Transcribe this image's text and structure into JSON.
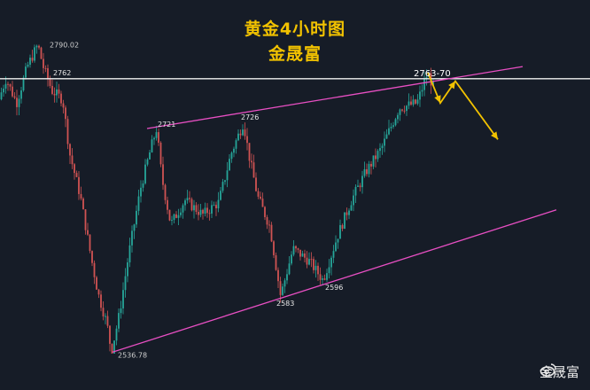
{
  "chart_data": {
    "type": "candlestick",
    "title": "黄金4小时图",
    "subtitle": "金晟富",
    "colors": {
      "up": "#26a69a",
      "down": "#d05353",
      "channel": "#e84fc3",
      "level": "#f0f0f0",
      "arrow": "#f2c200",
      "background": "#161c27"
    },
    "ylim": [
      2520,
      2805
    ],
    "pivots": [
      {
        "label": "2790.02",
        "price": 2790.02
      },
      {
        "label": "2721",
        "price": 2721
      },
      {
        "label": "2726",
        "price": 2726
      },
      {
        "label": "2536.78",
        "price": 2536.78
      },
      {
        "label": "2583",
        "price": 2583
      },
      {
        "label": "2596",
        "price": 2596
      }
    ],
    "horizontal_level": {
      "label": "2762",
      "price": 2762
    },
    "target_label": "2763-70",
    "channel": {
      "upper": [
        2721,
        2772
      ],
      "lower": [
        2536.78,
        2654
      ]
    },
    "projection": [
      2767,
      2742,
      2760,
      2712
    ]
  },
  "watermark": {
    "text": "金晟富",
    "icon": "weibo-icon"
  }
}
